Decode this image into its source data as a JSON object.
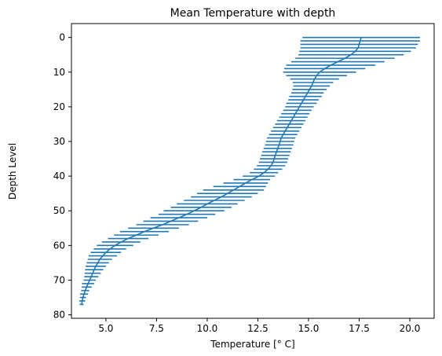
{
  "chart_data": {
    "type": "line",
    "title": "Mean Temperature with depth",
    "xlabel": "Temperature [° C]",
    "ylabel": "Depth Level",
    "xlim": [
      3.3,
      21.2
    ],
    "ylim": [
      81,
      -4
    ],
    "y_inverted": true,
    "grid": false,
    "legend": "none",
    "xticks": [
      5.0,
      7.5,
      10.0,
      12.5,
      15.0,
      17.5,
      20.0
    ],
    "xtick_labels": [
      "5.0",
      "7.5",
      "10.0",
      "12.5",
      "15.0",
      "17.5",
      "20.0"
    ],
    "yticks": [
      0,
      10,
      20,
      30,
      40,
      50,
      60,
      70,
      80
    ],
    "ytick_labels": [
      "0",
      "10",
      "20",
      "30",
      "40",
      "50",
      "60",
      "70",
      "80"
    ],
    "series": [
      {
        "color": "#1f77b4",
        "depth": [
          0,
          1,
          2,
          3,
          4,
          5,
          6,
          7,
          8,
          9,
          10,
          11,
          12,
          13,
          14,
          15,
          16,
          17,
          18,
          19,
          20,
          21,
          22,
          23,
          24,
          25,
          26,
          27,
          28,
          29,
          30,
          31,
          32,
          33,
          34,
          35,
          36,
          37,
          38,
          39,
          40,
          41,
          42,
          43,
          44,
          45,
          46,
          47,
          48,
          49,
          50,
          51,
          52,
          53,
          54,
          55,
          56,
          57,
          58,
          59,
          60,
          61,
          62,
          63,
          64,
          65,
          66,
          67,
          68,
          69,
          70,
          71,
          72,
          73,
          74,
          75,
          76,
          77
        ],
        "mean": [
          17.6,
          17.55,
          17.5,
          17.45,
          17.3,
          17.1,
          16.8,
          16.45,
          16.1,
          15.8,
          15.55,
          15.4,
          15.3,
          15.22,
          15.15,
          15.05,
          14.95,
          14.85,
          14.75,
          14.65,
          14.55,
          14.45,
          14.35,
          14.25,
          14.15,
          14.05,
          13.95,
          13.85,
          13.75,
          13.65,
          13.6,
          13.55,
          13.48,
          13.42,
          13.36,
          13.3,
          13.25,
          13.15,
          13.0,
          12.8,
          12.55,
          12.2,
          11.9,
          11.6,
          11.3,
          11.0,
          10.7,
          10.35,
          10.0,
          9.7,
          9.35,
          9.0,
          8.6,
          8.2,
          7.8,
          7.35,
          6.9,
          6.5,
          6.1,
          5.75,
          5.45,
          5.2,
          5.0,
          4.85,
          4.7,
          4.6,
          4.5,
          4.42,
          4.35,
          4.28,
          4.2,
          4.12,
          4.05,
          3.98,
          3.92,
          3.87,
          3.83,
          3.8
        ],
        "err": [
          2.9,
          2.95,
          2.9,
          2.85,
          2.75,
          2.6,
          2.45,
          2.3,
          2.2,
          2.0,
          1.8,
          1.5,
          1.2,
          1.0,
          0.9,
          0.85,
          0.8,
          0.8,
          0.75,
          0.75,
          0.7,
          0.7,
          0.7,
          0.7,
          0.7,
          0.7,
          0.7,
          0.7,
          0.7,
          0.7,
          0.7,
          0.7,
          0.7,
          0.7,
          0.7,
          0.7,
          0.7,
          0.7,
          0.7,
          0.7,
          0.8,
          0.9,
          1.1,
          1.3,
          1.5,
          1.5,
          1.5,
          1.5,
          1.5,
          1.5,
          1.5,
          1.4,
          1.4,
          1.35,
          1.3,
          1.25,
          1.2,
          1.1,
          1.0,
          0.95,
          0.9,
          0.8,
          0.75,
          0.7,
          0.6,
          0.55,
          0.5,
          0.45,
          0.4,
          0.35,
          0.3,
          0.3,
          0.25,
          0.2,
          0.2,
          0.15,
          0.15,
          0.1
        ]
      }
    ]
  }
}
